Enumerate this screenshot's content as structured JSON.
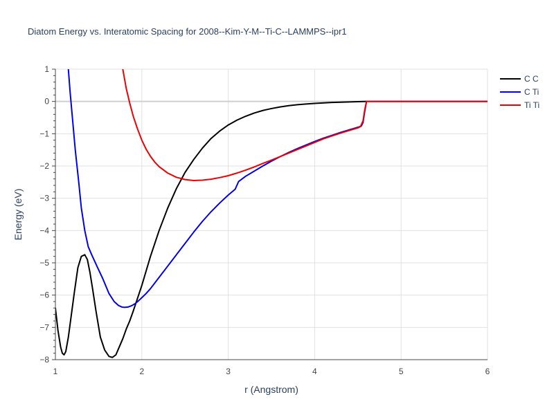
{
  "chart_data": {
    "type": "line",
    "title": "Diatom Energy vs. Interatomic Spacing for 2008--Kim-Y-M--Ti-C--LAMMPS--ipr1",
    "xlabel": "r (Angstrom)",
    "ylabel": "Energy (eV)",
    "xlim": [
      1,
      6
    ],
    "ylim": [
      -8,
      1
    ],
    "xticks": [
      "1",
      "2",
      "3",
      "4",
      "5",
      "6"
    ],
    "yticks": [
      "1",
      "0",
      "−1",
      "−2",
      "−3",
      "−4",
      "−5",
      "−6",
      "−7",
      "−8"
    ],
    "grid": true,
    "legend_position": "top-right",
    "series": [
      {
        "name": "C C",
        "color": "#000000",
        "x": [
          1.0,
          1.03,
          1.06,
          1.08,
          1.1,
          1.12,
          1.15,
          1.18,
          1.22,
          1.26,
          1.3,
          1.34,
          1.37,
          1.4,
          1.43,
          1.47,
          1.52,
          1.57,
          1.62,
          1.66,
          1.7,
          1.74,
          1.78,
          1.82,
          1.86,
          1.9,
          1.95,
          2.0,
          2.1,
          2.2,
          2.3,
          2.4,
          2.5,
          2.6,
          2.7,
          2.8,
          2.9,
          3.0,
          3.1,
          3.2,
          3.3,
          3.4,
          3.5,
          3.6,
          3.7,
          3.8,
          3.9,
          4.0,
          4.2,
          4.4,
          4.6,
          4.7,
          5.0,
          5.5,
          6.0
        ],
        "y": [
          -6.4,
          -7.1,
          -7.6,
          -7.8,
          -7.85,
          -7.75,
          -7.3,
          -6.7,
          -5.9,
          -5.15,
          -4.8,
          -4.75,
          -4.9,
          -5.3,
          -5.8,
          -6.5,
          -7.3,
          -7.7,
          -7.9,
          -7.93,
          -7.85,
          -7.6,
          -7.35,
          -7.05,
          -6.8,
          -6.5,
          -6.1,
          -5.7,
          -4.8,
          -4.0,
          -3.3,
          -2.7,
          -2.2,
          -1.8,
          -1.45,
          -1.15,
          -0.92,
          -0.73,
          -0.58,
          -0.46,
          -0.36,
          -0.28,
          -0.22,
          -0.17,
          -0.13,
          -0.1,
          -0.08,
          -0.06,
          -0.03,
          -0.015,
          0.0,
          0.0,
          0.0,
          0.0,
          0.0
        ]
      },
      {
        "name": "C Ti",
        "color": "#0000ee",
        "x": [
          1.15,
          1.17,
          1.2,
          1.23,
          1.27,
          1.3,
          1.34,
          1.38,
          1.42,
          1.48,
          1.55,
          1.62,
          1.68,
          1.73,
          1.77,
          1.8,
          1.84,
          1.88,
          1.92,
          1.96,
          2.0,
          2.05,
          2.1,
          2.2,
          2.3,
          2.4,
          2.5,
          2.6,
          2.7,
          2.8,
          2.9,
          3.0,
          3.08,
          3.1,
          3.12,
          3.2,
          3.3,
          3.4,
          3.5,
          3.6,
          3.7,
          3.8,
          3.9,
          4.0,
          4.1,
          4.2,
          4.3,
          4.4,
          4.5,
          4.54,
          4.56,
          4.58,
          4.6,
          4.7,
          5.0,
          5.5,
          6.0
        ],
        "y": [
          1.0,
          0.3,
          -0.6,
          -1.5,
          -2.5,
          -3.3,
          -4.0,
          -4.5,
          -4.75,
          -5.1,
          -5.5,
          -5.95,
          -6.2,
          -6.32,
          -6.37,
          -6.38,
          -6.37,
          -6.33,
          -6.27,
          -6.18,
          -6.08,
          -5.95,
          -5.8,
          -5.45,
          -5.1,
          -4.75,
          -4.4,
          -4.05,
          -3.72,
          -3.42,
          -3.15,
          -2.9,
          -2.72,
          -2.6,
          -2.48,
          -2.32,
          -2.16,
          -2.0,
          -1.85,
          -1.71,
          -1.58,
          -1.46,
          -1.35,
          -1.24,
          -1.14,
          -1.05,
          -0.96,
          -0.88,
          -0.8,
          -0.76,
          -0.65,
          -0.3,
          0.0,
          0.0,
          0.0,
          0.0,
          0.0
        ]
      },
      {
        "name": "Ti Ti",
        "color": "#ee0000",
        "x": [
          1.78,
          1.82,
          1.86,
          1.9,
          1.95,
          2.0,
          2.05,
          2.1,
          2.15,
          2.2,
          2.3,
          2.4,
          2.5,
          2.6,
          2.7,
          2.8,
          2.9,
          3.0,
          3.1,
          3.2,
          3.3,
          3.4,
          3.5,
          3.6,
          3.7,
          3.8,
          3.9,
          4.0,
          4.1,
          4.2,
          4.3,
          4.4,
          4.5,
          4.53,
          4.56,
          4.58,
          4.6,
          4.7,
          5.0,
          5.5,
          6.0
        ],
        "y": [
          1.0,
          0.4,
          -0.05,
          -0.45,
          -0.85,
          -1.2,
          -1.48,
          -1.7,
          -1.88,
          -2.02,
          -2.22,
          -2.35,
          -2.42,
          -2.45,
          -2.44,
          -2.41,
          -2.36,
          -2.3,
          -2.22,
          -2.13,
          -2.03,
          -1.92,
          -1.82,
          -1.71,
          -1.6,
          -1.49,
          -1.38,
          -1.27,
          -1.16,
          -1.07,
          -0.98,
          -0.9,
          -0.82,
          -0.78,
          -0.6,
          -0.25,
          0.0,
          0.0,
          0.0,
          0.0,
          0.0
        ]
      }
    ]
  }
}
